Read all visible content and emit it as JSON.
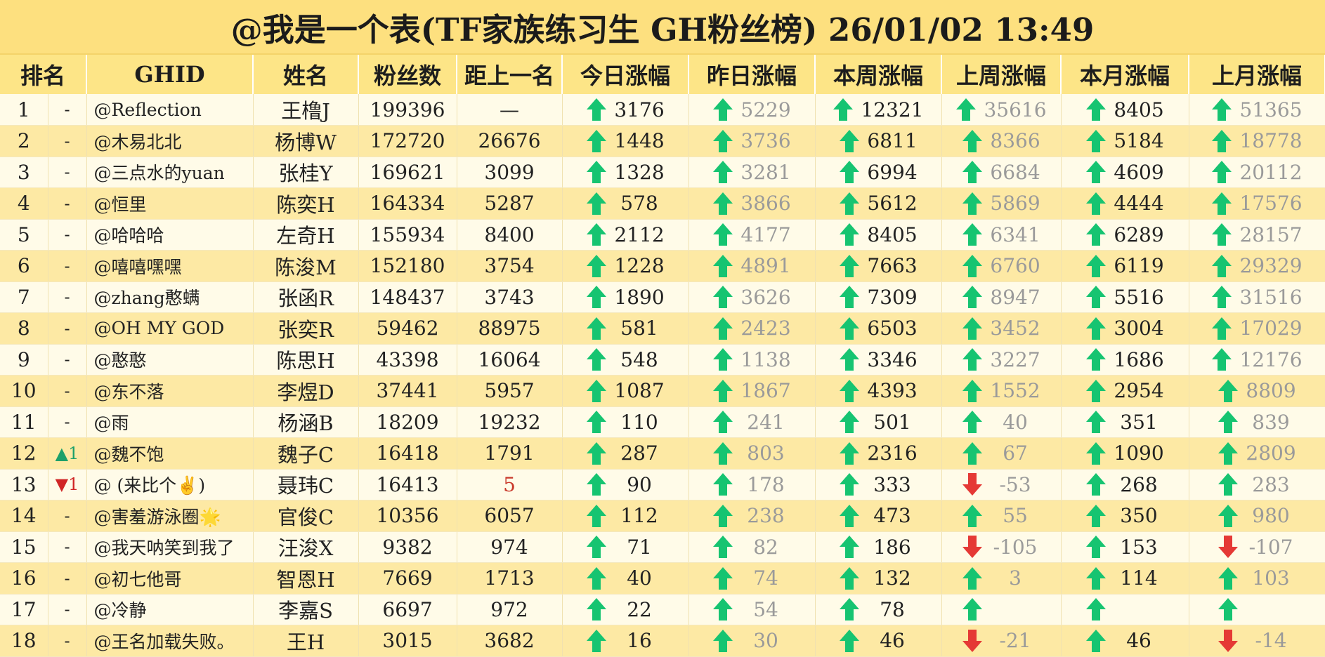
{
  "title": "@我是一个表(TF家族练习生 GH粉丝榜)  26/01/02 13:49",
  "headers": [
    "排名",
    "GHID",
    "姓名",
    "粉丝数",
    "距上一名",
    "今日涨幅",
    "昨日涨幅",
    "本周涨幅",
    "上周涨幅",
    "本月涨幅",
    "上月涨幅"
  ],
  "rows": [
    {
      "rank": "1",
      "move": "-",
      "ghid": "@Reflection",
      "name": "王橹J",
      "fans": "199396",
      "gap": "—",
      "today": "3176",
      "yesterday": "5229",
      "week": "12321",
      "lastweek": "35616",
      "month": "8405",
      "lastmonth": "51365"
    },
    {
      "rank": "2",
      "move": "-",
      "ghid": "@木易北北",
      "name": "杨博W",
      "fans": "172720",
      "gap": "26676",
      "today": "1448",
      "yesterday": "3736",
      "week": "6811",
      "lastweek": "8366",
      "month": "5184",
      "lastmonth": "18778"
    },
    {
      "rank": "3",
      "move": "-",
      "ghid": "@三点水的yuan",
      "name": "张桂Y",
      "fans": "169621",
      "gap": "3099",
      "today": "1328",
      "yesterday": "3281",
      "week": "6994",
      "lastweek": "6684",
      "month": "4609",
      "lastmonth": "20112"
    },
    {
      "rank": "4",
      "move": "-",
      "ghid": "@恒里",
      "name": "陈奕H",
      "fans": "164334",
      "gap": "5287",
      "today": "578",
      "yesterday": "3866",
      "week": "5612",
      "lastweek": "5869",
      "month": "4444",
      "lastmonth": "17576"
    },
    {
      "rank": "5",
      "move": "-",
      "ghid": "@哈哈哈",
      "name": "左奇H",
      "fans": "155934",
      "gap": "8400",
      "today": "2112",
      "yesterday": "4177",
      "week": "8405",
      "lastweek": "6341",
      "month": "6289",
      "lastmonth": "28157"
    },
    {
      "rank": "6",
      "move": "-",
      "ghid": "@嘻嘻嘿嘿",
      "name": "陈浚M",
      "fans": "152180",
      "gap": "3754",
      "today": "1228",
      "yesterday": "4891",
      "week": "7663",
      "lastweek": "6760",
      "month": "6119",
      "lastmonth": "29329"
    },
    {
      "rank": "7",
      "move": "-",
      "ghid": "@zhang憨螨",
      "name": "张函R",
      "fans": "148437",
      "gap": "3743",
      "today": "1890",
      "yesterday": "3626",
      "week": "7309",
      "lastweek": "8947",
      "month": "5516",
      "lastmonth": "31516"
    },
    {
      "rank": "8",
      "move": "-",
      "ghid": "@OH MY GOD",
      "name": "张奕R",
      "fans": "59462",
      "gap": "88975",
      "today": "581",
      "yesterday": "2423",
      "week": "6503",
      "lastweek": "3452",
      "month": "3004",
      "lastmonth": "17029"
    },
    {
      "rank": "9",
      "move": "-",
      "ghid": "@憨憨",
      "name": "陈思H",
      "fans": "43398",
      "gap": "16064",
      "today": "548",
      "yesterday": "1138",
      "week": "3346",
      "lastweek": "3227",
      "month": "1686",
      "lastmonth": "12176"
    },
    {
      "rank": "10",
      "move": "-",
      "ghid": "@东不落",
      "name": "李煜D",
      "fans": "37441",
      "gap": "5957",
      "today": "1087",
      "yesterday": "1867",
      "week": "4393",
      "lastweek": "1552",
      "month": "2954",
      "lastmonth": "8809"
    },
    {
      "rank": "11",
      "move": "-",
      "ghid": "@雨",
      "name": "杨涵B",
      "fans": "18209",
      "gap": "19232",
      "today": "110",
      "yesterday": "241",
      "week": "501",
      "lastweek": "40",
      "month": "351",
      "lastmonth": "839"
    },
    {
      "rank": "12",
      "move": "▲1",
      "ghid": "@魏不饱",
      "name": "魏子C",
      "fans": "16418",
      "gap": "1791",
      "today": "287",
      "yesterday": "803",
      "week": "2316",
      "lastweek": "67",
      "month": "1090",
      "lastmonth": "2809"
    },
    {
      "rank": "13",
      "move": "▼1",
      "ghid": "@ (来比个✌)",
      "name": "聂玮C",
      "fans": "16413",
      "gap": "5",
      "today": "90",
      "yesterday": "178",
      "week": "333",
      "lastweek": "-53",
      "month": "268",
      "lastmonth": "283"
    },
    {
      "rank": "14",
      "move": "-",
      "ghid": "@害羞游泳圈🌟",
      "name": "官俊C",
      "fans": "10356",
      "gap": "6057",
      "today": "112",
      "yesterday": "238",
      "week": "473",
      "lastweek": "55",
      "month": "350",
      "lastmonth": "980"
    },
    {
      "rank": "15",
      "move": "-",
      "ghid": "@我天呐笑到我了",
      "name": "汪浚X",
      "fans": "9382",
      "gap": "974",
      "today": "71",
      "yesterday": "82",
      "week": "186",
      "lastweek": "-105",
      "month": "153",
      "lastmonth": "-107"
    },
    {
      "rank": "16",
      "move": "-",
      "ghid": "@初七他哥",
      "name": "智恩H",
      "fans": "7669",
      "gap": "1713",
      "today": "40",
      "yesterday": "74",
      "week": "132",
      "lastweek": "3",
      "month": "114",
      "lastmonth": "103"
    },
    {
      "rank": "17",
      "move": "-",
      "ghid": "@冷静",
      "name": "李嘉S",
      "fans": "6697",
      "gap": "972",
      "today": "22",
      "yesterday": "54",
      "week": "78",
      "lastweek": "",
      "month": "",
      "lastmonth": ""
    },
    {
      "rank": "18",
      "move": "-",
      "ghid": "@王名加载失败。",
      "name": "王H",
      "fans": "3015",
      "gap": "3682",
      "today": "16",
      "yesterday": "30",
      "week": "46",
      "lastweek": "-21",
      "month": "46",
      "lastmonth": "-14"
    }
  ],
  "colors": {
    "up": "#16c471",
    "down": "#e53935",
    "header_bg": "#fde587",
    "row_odd": "#fffbe8",
    "row_even": "#fde9a4"
  },
  "icons": {
    "up": "green-up-arrow-icon",
    "down": "red-down-arrow-icon"
  }
}
